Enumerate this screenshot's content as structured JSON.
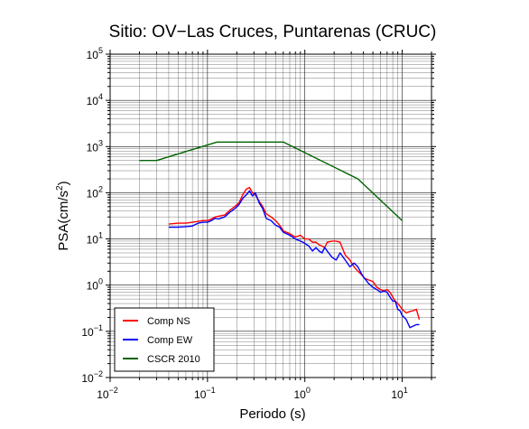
{
  "chart_data": {
    "type": "line",
    "title": "Sitio: OV−Las Cruces, Puntarenas (CRUC)",
    "xlabel": "Periodo (s)",
    "ylabel_main": "PSA(cm/s",
    "ylabel_sup": "2",
    "ylabel_end": ")",
    "x_scale": "log",
    "y_scale": "log",
    "xlim": [
      0.01,
      20
    ],
    "ylim": [
      0.01,
      100000
    ],
    "grid": true,
    "legend_position": "bottom-left",
    "x_ticks": [
      {
        "value": 0.01,
        "base": "10",
        "exp": "−2"
      },
      {
        "value": 0.1,
        "base": "10",
        "exp": "−1"
      },
      {
        "value": 1,
        "base": "10",
        "exp": "0"
      },
      {
        "value": 10,
        "base": "10",
        "exp": "1"
      }
    ],
    "y_ticks": [
      {
        "value": 0.01,
        "base": "10",
        "exp": "−2"
      },
      {
        "value": 0.1,
        "base": "10",
        "exp": "−1"
      },
      {
        "value": 1,
        "base": "10",
        "exp": "0"
      },
      {
        "value": 10,
        "base": "10",
        "exp": "1"
      },
      {
        "value": 100,
        "base": "10",
        "exp": "2"
      },
      {
        "value": 1000,
        "base": "10",
        "exp": "3"
      },
      {
        "value": 10000,
        "base": "10",
        "exp": "4"
      },
      {
        "value": 100000,
        "base": "10",
        "exp": "5"
      }
    ],
    "series": [
      {
        "name": "Comp NS",
        "color": "#ff0000",
        "x": [
          0.04,
          0.05,
          0.06,
          0.07,
          0.08,
          0.09,
          0.1,
          0.11,
          0.12,
          0.13,
          0.15,
          0.17,
          0.19,
          0.21,
          0.23,
          0.25,
          0.27,
          0.29,
          0.31,
          0.34,
          0.37,
          0.4,
          0.45,
          0.5,
          0.55,
          0.6,
          0.7,
          0.8,
          0.9,
          1.0,
          1.1,
          1.2,
          1.3,
          1.4,
          1.5,
          1.6,
          1.7,
          1.9,
          2.1,
          2.3,
          2.6,
          2.9,
          3.2,
          3.5,
          3.8,
          4.1,
          4.5,
          5.0,
          5.5,
          6.0,
          6.5,
          7.0,
          7.5,
          8.0,
          8.5,
          9.0,
          9.5,
          10.0,
          11.0,
          12.0,
          13.0,
          14.0,
          15.0
        ],
        "values": [
          21,
          22,
          22,
          23,
          24,
          25,
          25,
          27,
          30,
          31,
          33,
          42,
          50,
          60,
          90,
          120,
          130,
          100,
          90,
          65,
          50,
          35,
          30,
          25,
          20,
          15,
          13,
          11,
          12,
          10,
          10,
          8.5,
          8.5,
          7.5,
          7.0,
          6.5,
          8.5,
          9.0,
          9.0,
          8.5,
          4.5,
          3.5,
          2.5,
          2.0,
          1.7,
          1.4,
          1.3,
          1.2,
          0.9,
          0.8,
          0.75,
          0.8,
          0.7,
          0.55,
          0.45,
          0.4,
          0.35,
          0.3,
          0.25,
          0.27,
          0.28,
          0.3,
          0.18
        ]
      },
      {
        "name": "Comp EW",
        "color": "#0000ff",
        "x": [
          0.04,
          0.05,
          0.06,
          0.07,
          0.08,
          0.09,
          0.1,
          0.11,
          0.12,
          0.13,
          0.15,
          0.17,
          0.19,
          0.21,
          0.23,
          0.25,
          0.27,
          0.29,
          0.31,
          0.34,
          0.37,
          0.4,
          0.45,
          0.5,
          0.55,
          0.6,
          0.7,
          0.8,
          0.9,
          1.0,
          1.1,
          1.2,
          1.3,
          1.4,
          1.5,
          1.6,
          1.7,
          1.9,
          2.1,
          2.3,
          2.6,
          2.9,
          3.2,
          3.5,
          3.8,
          4.1,
          4.5,
          5.0,
          5.5,
          6.0,
          6.5,
          7.0,
          7.5,
          8.0,
          8.5,
          9.0,
          9.5,
          10.0,
          11.0,
          12.0,
          13.0,
          14.0,
          15.0
        ],
        "values": [
          18,
          18,
          18.5,
          19,
          22,
          23,
          23,
          25,
          28,
          27,
          30,
          38,
          45,
          55,
          75,
          90,
          110,
          85,
          100,
          60,
          45,
          28,
          25,
          20,
          18,
          14,
          12,
          10,
          9,
          8,
          7,
          5.5,
          6.5,
          5.5,
          5.0,
          6.5,
          5.5,
          4.0,
          3.5,
          5.0,
          3.5,
          2.5,
          3.0,
          2.5,
          1.8,
          1.4,
          1.1,
          0.9,
          0.8,
          0.7,
          0.75,
          0.7,
          0.55,
          0.45,
          0.45,
          0.3,
          0.28,
          0.22,
          0.18,
          0.12,
          0.13,
          0.14,
          0.14
        ]
      },
      {
        "name": "CSCR 2010",
        "color": "#006400",
        "x": [
          0.02,
          0.03,
          0.125,
          0.6,
          3.5,
          10.0
        ],
        "values": [
          500,
          500,
          1250,
          1250,
          200,
          25
        ]
      }
    ]
  }
}
